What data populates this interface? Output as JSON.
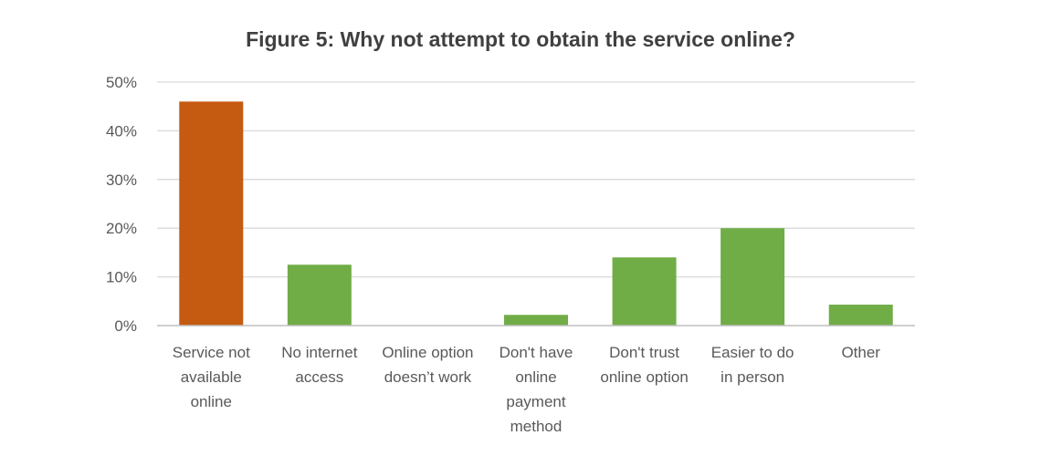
{
  "chart_data": {
    "type": "bar",
    "title": "Figure 5: Why not attempt to obtain the service online?",
    "xlabel": "",
    "ylabel": "",
    "ylim": [
      0,
      50
    ],
    "yticks": [
      "0%",
      "10%",
      "20%",
      "30%",
      "40%",
      "50%"
    ],
    "categories": [
      "Service not available online",
      "No internet access",
      "Online option doesn't work",
      "Don't have online payment method",
      "Don't trust online option",
      "Easier to do in person",
      "Other"
    ],
    "category_lines": [
      [
        "Service not",
        "available",
        "online"
      ],
      [
        "No internet",
        "access"
      ],
      [
        "Online option",
        "doesn’t work"
      ],
      [
        "Don't have",
        "online",
        "payment",
        "method"
      ],
      [
        "Don't trust",
        "online option"
      ],
      [
        "Easier to do",
        "in person"
      ],
      [
        "Other"
      ]
    ],
    "values": [
      46,
      12.5,
      0,
      2.2,
      14,
      20,
      4.3
    ],
    "unit": "%",
    "bar_colors": [
      "#c55a11",
      "#70ad47",
      "#70ad47",
      "#70ad47",
      "#70ad47",
      "#70ad47",
      "#70ad47"
    ],
    "grid": true,
    "legend": "none"
  }
}
